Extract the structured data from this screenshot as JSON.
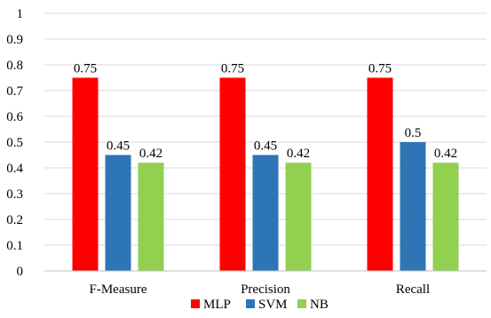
{
  "chart_data": {
    "type": "bar",
    "categories": [
      "F-Measure",
      "Precision",
      "Recall"
    ],
    "series": [
      {
        "name": "MLP",
        "values": [
          0.75,
          0.75,
          0.75
        ],
        "color": "#ff0000"
      },
      {
        "name": "SVM",
        "values": [
          0.45,
          0.45,
          0.5
        ],
        "color": "#2e75b6"
      },
      {
        "name": "NB",
        "values": [
          0.42,
          0.42,
          0.42
        ],
        "color": "#92d050"
      }
    ],
    "data_labels": [
      [
        "0.75",
        "0.45",
        "0.42"
      ],
      [
        "0.75",
        "0.45",
        "0.42"
      ],
      [
        "0.75",
        "0.5",
        "0.42"
      ]
    ],
    "y_ticks": [
      "0",
      "0.1",
      "0.2",
      "0.3",
      "0.4",
      "0.5",
      "0.6",
      "0.7",
      "0.8",
      "0.9",
      "1"
    ],
    "ylim": [
      0,
      1
    ],
    "grid": true,
    "legend_position": "bottom",
    "title": "",
    "xlabel": "",
    "ylabel": ""
  }
}
